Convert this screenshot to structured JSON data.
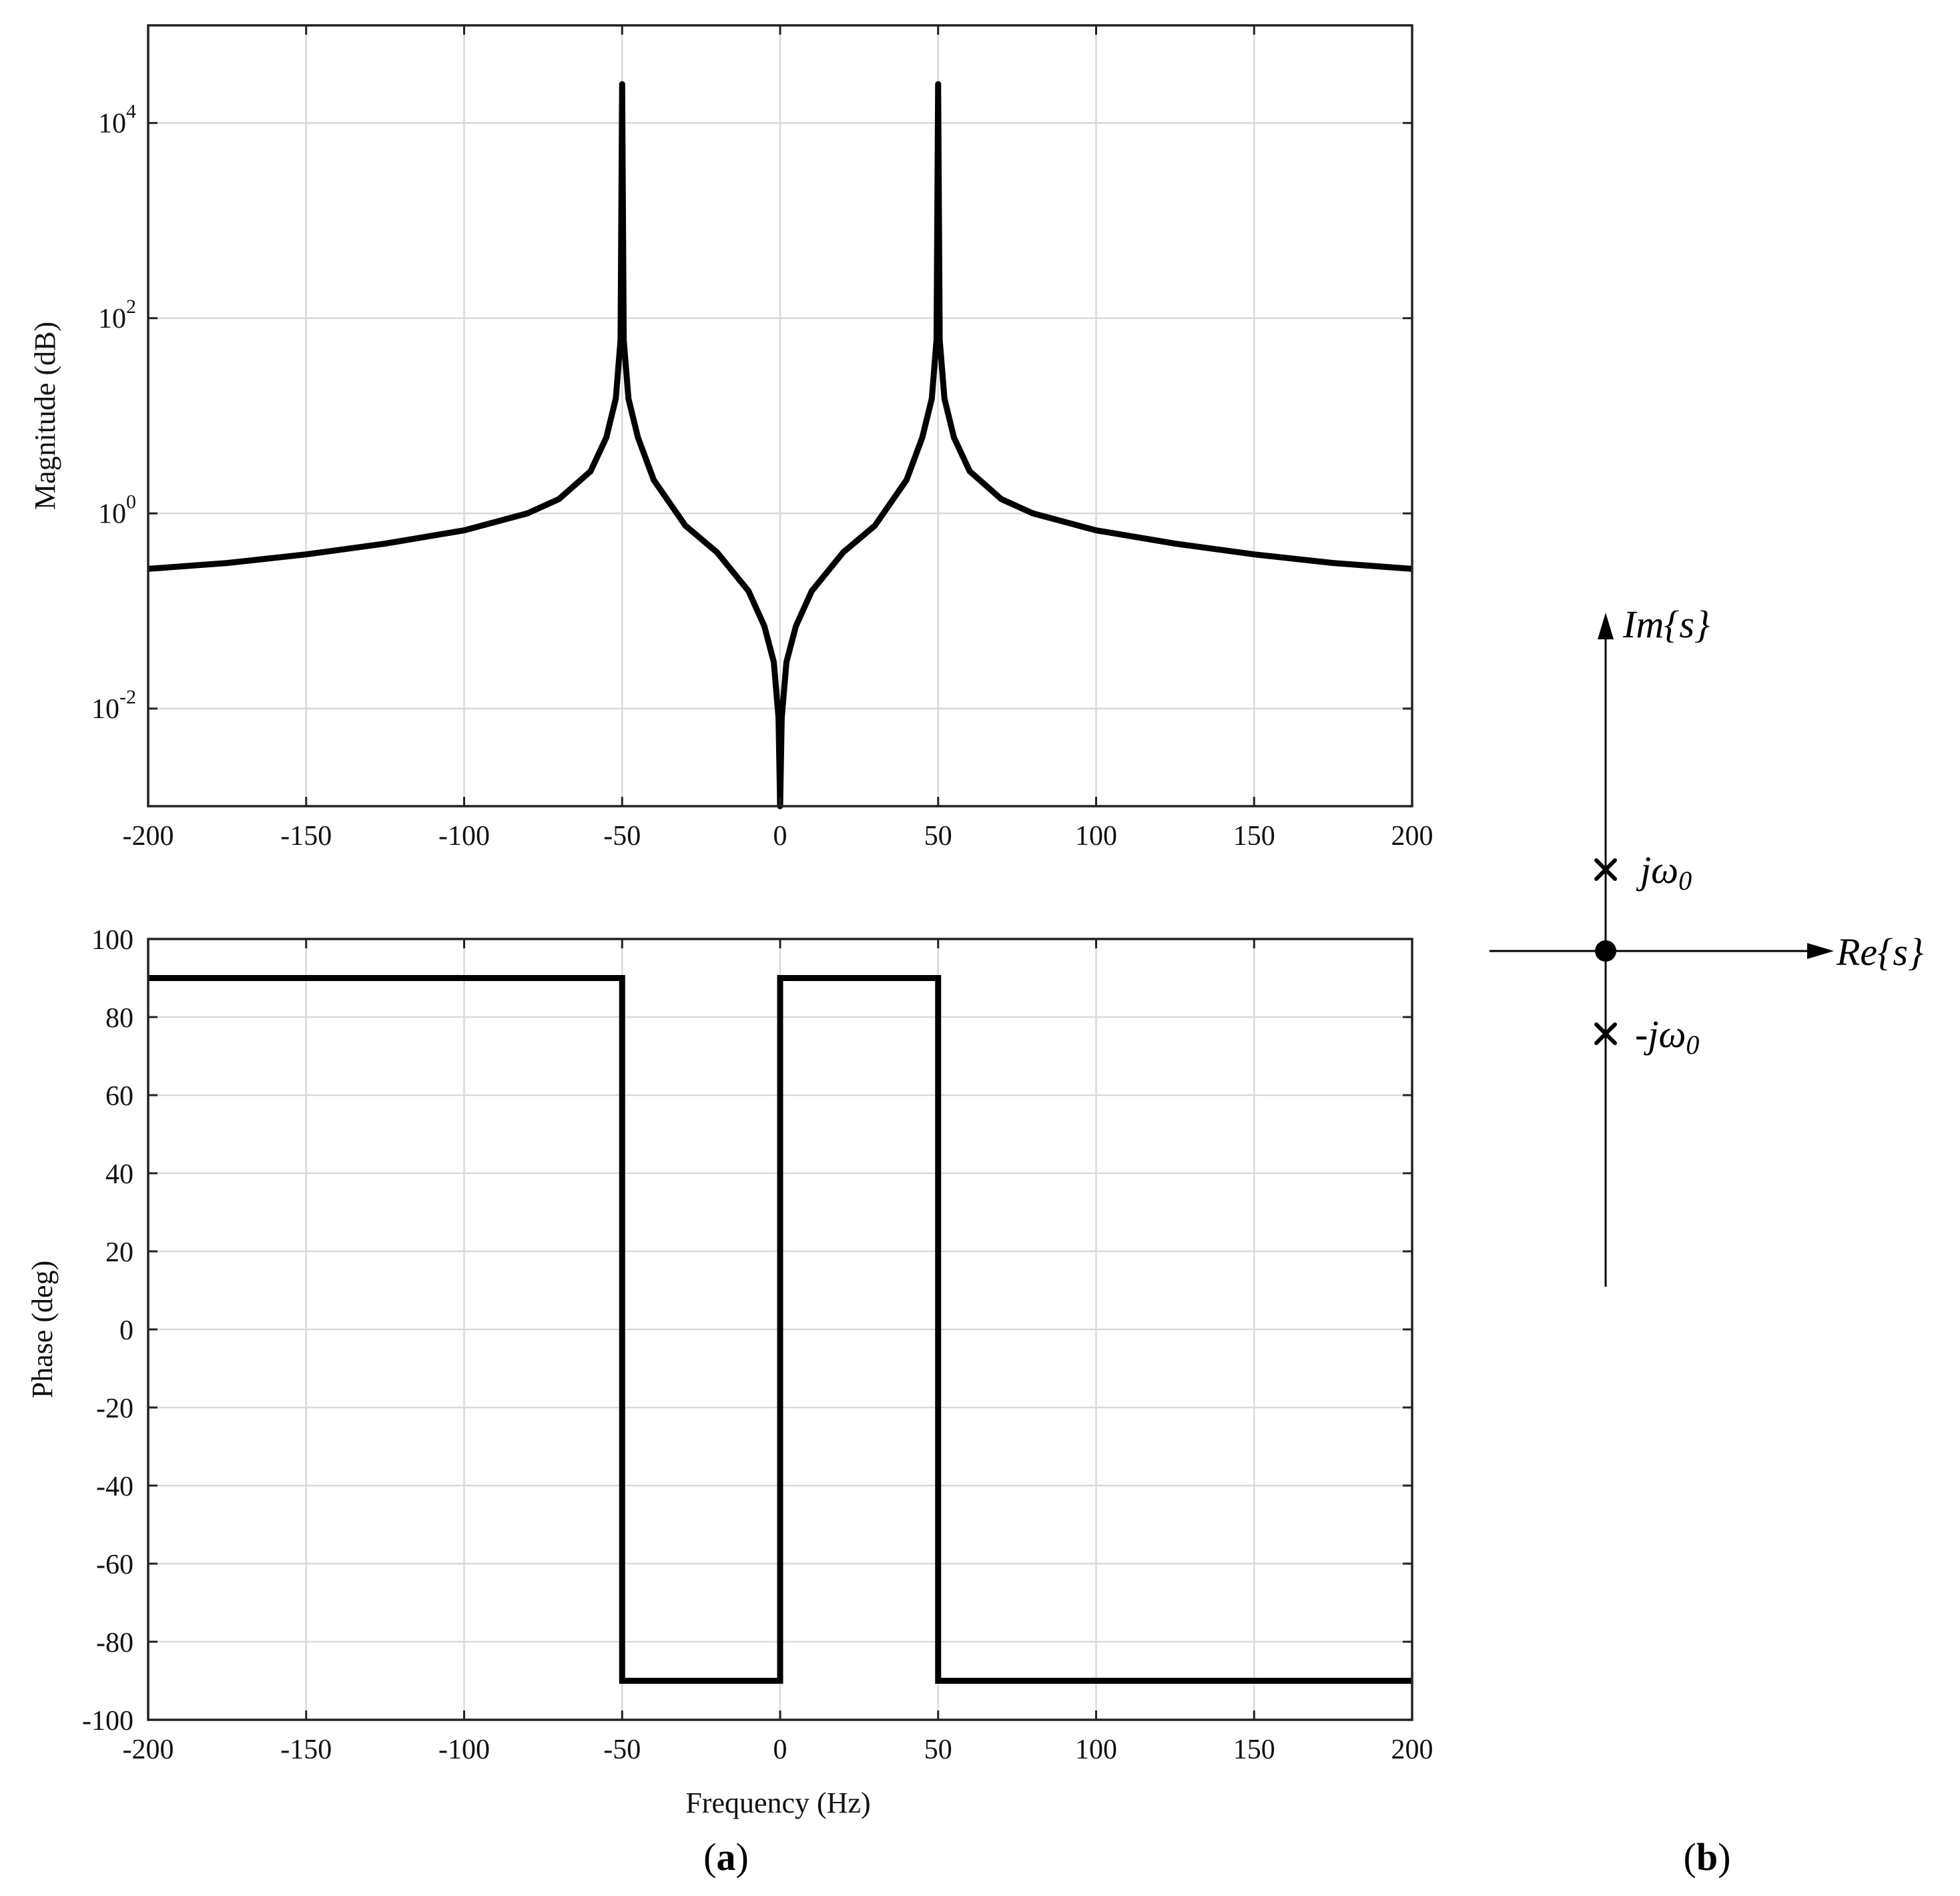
{
  "colors": {
    "curve": "#000000",
    "grid": "#d9d9d9",
    "axes": "#222222"
  },
  "caption_a": {
    "open": "(",
    "letter": "a",
    "close": ")"
  },
  "caption_b": {
    "open": "(",
    "letter": "b",
    "close": ")"
  },
  "chart_data": [
    {
      "type": "line",
      "panel": "a-top",
      "ylabel": "Magnitude (dB)",
      "xlabel": "",
      "xlim": [
        -200,
        200
      ],
      "ylim": [
        0.001,
        100000
      ],
      "yscale": "log",
      "grid": true,
      "x_ticks": [
        "-200",
        "-150",
        "-100",
        "-50",
        "0",
        "50",
        "100",
        "150",
        "200"
      ],
      "y_ticks": [
        {
          "base": "10",
          "exp": "4"
        },
        {
          "base": "10",
          "exp": "2"
        },
        {
          "base": "10",
          "exp": "0"
        },
        {
          "base": "10",
          "exp": "-2"
        }
      ],
      "series": [
        {
          "x": [
            -200,
            -175,
            -150,
            -125,
            -100,
            -80,
            -70,
            -60,
            -55,
            -52,
            -50.5,
            -50,
            -49.5,
            -48,
            -45,
            -40,
            -30,
            -20,
            -10,
            -5,
            -2,
            -0.5,
            0,
            0.5,
            2,
            5,
            10,
            20,
            30,
            40,
            45,
            48,
            49.5,
            50,
            50.5,
            52,
            55,
            60,
            70,
            80,
            100,
            125,
            150,
            175,
            200
          ],
          "y": [
            0.27,
            0.31,
            0.38,
            0.49,
            0.67,
            1.0,
            1.4,
            2.7,
            6,
            15,
            60,
            25000,
            60,
            15,
            6,
            2.2,
            0.75,
            0.4,
            0.16,
            0.07,
            0.03,
            0.008,
            0.001,
            0.008,
            0.03,
            0.07,
            0.16,
            0.4,
            0.75,
            2.2,
            6,
            15,
            60,
            25000,
            60,
            15,
            6,
            2.7,
            1.4,
            1.0,
            0.67,
            0.49,
            0.38,
            0.31,
            0.27
          ]
        }
      ]
    },
    {
      "type": "line",
      "panel": "a-bottom",
      "ylabel": "Phase (deg)",
      "xlabel": "Frequency (Hz)",
      "xlim": [
        -200,
        200
      ],
      "ylim": [
        -100,
        100
      ],
      "grid": true,
      "x_ticks": [
        "-200",
        "-150",
        "-100",
        "-50",
        "0",
        "50",
        "100",
        "150",
        "200"
      ],
      "y_ticks": [
        "100",
        "80",
        "60",
        "40",
        "20",
        "0",
        "-20",
        "-40",
        "-60",
        "-80",
        "-100"
      ],
      "series": [
        {
          "x": [
            -200,
            -50,
            -50,
            0,
            0,
            50,
            50,
            200
          ],
          "y": [
            90,
            90,
            -90,
            -90,
            90,
            90,
            -90,
            -90
          ]
        }
      ]
    },
    {
      "type": "diagram",
      "panel": "b",
      "im_axis": {
        "main": "Im",
        "arg": "{s}"
      },
      "re_axis": {
        "main": "Re",
        "arg": "{s}"
      },
      "pole_pos": {
        "pre": "",
        "main": "jω",
        "sub": "0"
      },
      "pole_neg": {
        "pre": "-",
        "main": "jω",
        "sub": "0"
      },
      "zero": "origin"
    }
  ]
}
